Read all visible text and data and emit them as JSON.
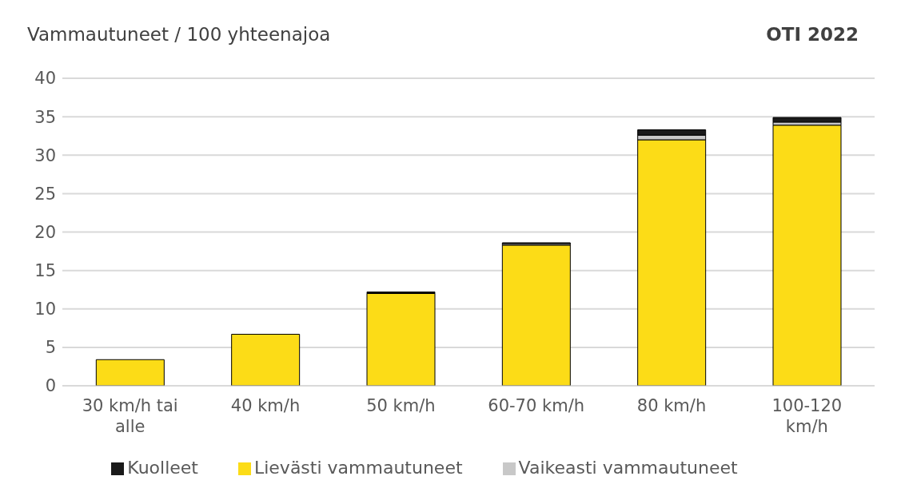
{
  "chart_data": {
    "type": "bar",
    "ylabel": "Vammautuneet / 100 yhteenajoa",
    "annotations": [
      "OTI 2022"
    ],
    "categories": [
      "30 km/h tai alle",
      "40 km/h",
      "50 km/h",
      "60-70 km/h",
      "80 km/h",
      "100-120 km/h"
    ],
    "stacked": true,
    "series": [
      {
        "name": "Lievästi vammautuneet",
        "color": "#fcdc17",
        "values": [
          3.4,
          6.7,
          12.0,
          18.3,
          32.0,
          33.9
        ]
      },
      {
        "name": "Vaikeasti vammautuneet",
        "color": "#c8c8c8",
        "values": [
          0,
          0,
          0.1,
          0.2,
          0.6,
          0.4
        ]
      },
      {
        "name": "Kuolleet",
        "color": "#1a1a1a",
        "values": [
          0,
          0,
          0.1,
          0.1,
          0.7,
          0.6
        ]
      }
    ],
    "ylim": [
      0,
      40
    ],
    "yticks": [
      0,
      5,
      10,
      15,
      20,
      25,
      30,
      35,
      40
    ],
    "grid": "y",
    "legend": "bottom"
  }
}
